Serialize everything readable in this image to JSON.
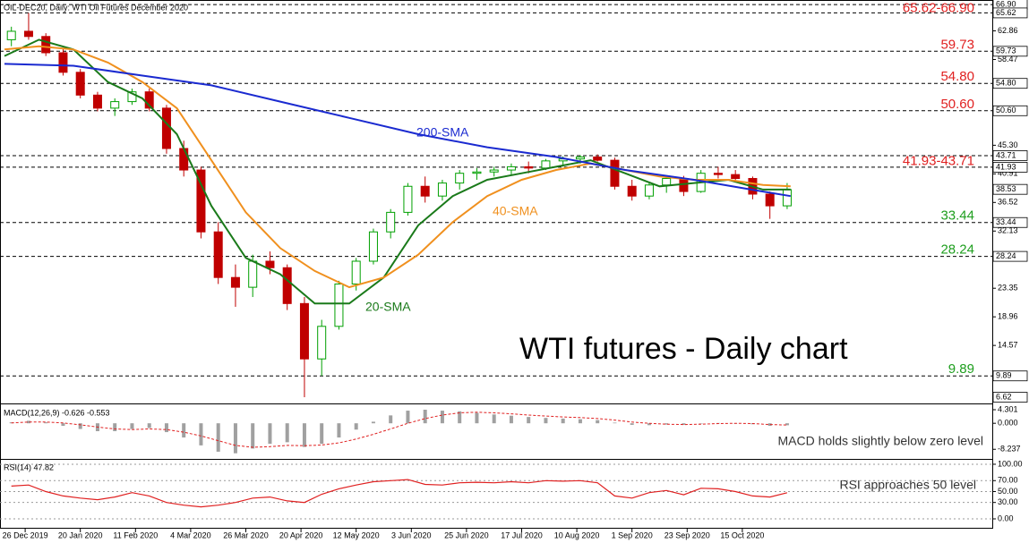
{
  "chart_data": [
    {
      "type": "candlestick",
      "title": "OIL-DEC20, Daily:  WTI Oil Futures December 2020",
      "annotation": "WTI futures - Daily chart",
      "up_color": "#00a000",
      "down_color": "#c00000",
      "xlim": [
        -1.3,
        286.5
      ],
      "xticks": [
        {
          "value": 6,
          "label": "26 Dec 2019"
        },
        {
          "value": 22,
          "label": "20 Jan 2020"
        },
        {
          "value": 38,
          "label": "11 Feb 2020"
        },
        {
          "value": 54,
          "label": "4 Mar 2020"
        },
        {
          "value": 70,
          "label": "26 Mar 2020"
        },
        {
          "value": 86,
          "label": "20 Apr 2020"
        },
        {
          "value": 102,
          "label": "12 May 2020"
        },
        {
          "value": 118,
          "label": "3 Jun 2020"
        },
        {
          "value": 134,
          "label": "25 Jun 2020"
        },
        {
          "value": 150,
          "label": "17 Jul 2020"
        },
        {
          "value": 166,
          "label": "10 Aug 2020"
        },
        {
          "value": 182,
          "label": "1 Sep 2020"
        },
        {
          "value": 198,
          "label": "23 Sep 2020"
        },
        {
          "value": 214,
          "label": "15 Oct 2020"
        }
      ],
      "ylim": [
        5.8,
        67.6
      ],
      "yticks": [
        {
          "value": 62.86,
          "label": "62.86"
        },
        {
          "value": 58.47,
          "label": "58.47"
        },
        {
          "value": 45.3,
          "label": "45.30"
        },
        {
          "value": 40.91,
          "label": "40.91"
        },
        {
          "value": 36.52,
          "label": "36.52"
        },
        {
          "value": 32.13,
          "label": "32.13"
        },
        {
          "value": 23.35,
          "label": "23.35"
        },
        {
          "value": 18.96,
          "label": "18.96"
        },
        {
          "value": 14.57,
          "label": "14.57"
        }
      ],
      "boxed_ticks": [
        {
          "value": 66.9,
          "label": "66.90"
        },
        {
          "value": 65.62,
          "label": "65.62"
        },
        {
          "value": 59.73,
          "label": "59.73"
        },
        {
          "value": 54.8,
          "label": "54.80"
        },
        {
          "value": 50.6,
          "label": "50.60"
        },
        {
          "value": 43.71,
          "label": "43.71"
        },
        {
          "value": 41.93,
          "label": "41.93"
        },
        {
          "value": 38.53,
          "label": "38.53"
        },
        {
          "value": 33.44,
          "label": "33.44"
        },
        {
          "value": 28.24,
          "label": "28.24"
        },
        {
          "value": 9.89,
          "label": "9.89"
        },
        {
          "value": 6.62,
          "label": "6.62"
        }
      ],
      "levels": [
        {
          "label": "65.62-66.90",
          "color": "#e02020",
          "values": [
            65.62,
            66.9
          ]
        },
        {
          "label": "59.73",
          "color": "#e02020",
          "values": [
            59.73
          ]
        },
        {
          "label": "54.80",
          "color": "#e02020",
          "values": [
            54.8
          ]
        },
        {
          "label": "50.60",
          "color": "#e02020",
          "values": [
            50.6
          ]
        },
        {
          "label": "41.93-43.71",
          "color": "#e02020",
          "values": [
            41.93,
            43.71
          ]
        },
        {
          "label": "33.44",
          "color": "#1e9e1e",
          "values": [
            33.44
          ]
        },
        {
          "label": "28.24",
          "color": "#1e9e1e",
          "values": [
            28.24
          ]
        },
        {
          "label": "9.89",
          "color": "#1e9e1e",
          "values": [
            9.89
          ]
        }
      ],
      "candles": {
        "x": [
          2,
          7,
          12,
          17,
          22,
          27,
          32,
          37,
          42,
          47,
          52,
          57,
          62,
          67,
          72,
          77,
          82,
          87,
          92,
          97,
          102,
          107,
          112,
          117,
          122,
          127,
          132,
          137,
          142,
          147,
          152,
          157,
          162,
          167,
          172,
          177,
          182,
          187,
          192,
          197,
          202,
          207,
          212,
          217,
          222,
          227
        ],
        "open": [
          61.5,
          62.8,
          62.0,
          59.5,
          56.5,
          53.0,
          51.0,
          52.0,
          53.5,
          51.0,
          44.8,
          41.5,
          32.0,
          25.0,
          23.5,
          27.5,
          26.5,
          21.0,
          12.5,
          17.5,
          24.0,
          27.5,
          32.0,
          35.0,
          39.0,
          37.5,
          39.5,
          41.0,
          41.2,
          41.5,
          42.0,
          41.8,
          42.9,
          43.2,
          43.5,
          43.0,
          39.0,
          37.5,
          39.2,
          40.2,
          38.2,
          41.0,
          40.8,
          40.2,
          37.8,
          36.0
        ],
        "high": [
          63.5,
          65.6,
          62.5,
          60.2,
          57.0,
          53.5,
          52.5,
          54.0,
          54.0,
          51.5,
          46.0,
          42.0,
          33.5,
          27.0,
          28.5,
          29.0,
          27.0,
          22.0,
          18.5,
          24.5,
          28.0,
          32.5,
          35.5,
          39.5,
          40.5,
          40.0,
          41.5,
          41.8,
          42.0,
          42.5,
          42.8,
          43.2,
          43.6,
          43.8,
          43.9,
          43.4,
          40.0,
          39.5,
          40.5,
          40.6,
          41.5,
          42.0,
          41.5,
          40.5,
          38.2,
          39.5
        ],
        "low": [
          60.5,
          61.5,
          59.0,
          56.0,
          52.5,
          50.5,
          49.8,
          51.5,
          50.5,
          44.0,
          40.5,
          31.0,
          24.0,
          20.5,
          22.0,
          25.5,
          20.0,
          6.62,
          9.9,
          17.0,
          23.0,
          27.0,
          31.0,
          34.5,
          36.5,
          36.8,
          38.5,
          40.0,
          40.5,
          40.8,
          41.0,
          41.5,
          42.0,
          42.5,
          42.8,
          38.5,
          36.8,
          37.0,
          38.0,
          37.5,
          38.0,
          40.2,
          39.8,
          37.0,
          34.0,
          35.5
        ],
        "close": [
          62.8,
          62.0,
          59.5,
          56.5,
          53.0,
          51.0,
          52.0,
          53.5,
          51.0,
          44.8,
          41.5,
          32.0,
          25.0,
          23.5,
          27.5,
          26.5,
          21.0,
          12.5,
          17.5,
          24.0,
          27.5,
          32.0,
          35.0,
          39.0,
          37.5,
          39.5,
          41.0,
          41.2,
          41.5,
          42.0,
          41.8,
          42.9,
          43.2,
          43.5,
          43.0,
          39.0,
          37.5,
          39.2,
          40.2,
          38.2,
          41.0,
          40.8,
          40.2,
          37.8,
          36.0,
          38.5
        ]
      },
      "lines": [
        {
          "name": "20-SMA",
          "color": "#1a7a1a",
          "x": [
            0,
            10,
            20,
            30,
            40,
            50,
            60,
            70,
            80,
            90,
            100,
            110,
            120,
            130,
            140,
            150,
            160,
            170,
            180,
            190,
            200,
            210,
            220,
            228
          ],
          "values": [
            59,
            61.5,
            60,
            55,
            52.5,
            47,
            36,
            28,
            25.5,
            21,
            21,
            25,
            33,
            37.5,
            40,
            41,
            42,
            43,
            41,
            39,
            39.5,
            40,
            38.5,
            38.5
          ]
        },
        {
          "name": "40-SMA",
          "color": "#f0901e",
          "x": [
            0,
            10,
            20,
            30,
            40,
            50,
            60,
            70,
            80,
            90,
            100,
            110,
            120,
            130,
            140,
            150,
            160,
            170,
            180,
            190,
            200,
            210,
            220,
            228
          ],
          "values": [
            60,
            60.5,
            60,
            58,
            55,
            51,
            43,
            35,
            29.5,
            26,
            23.5,
            25,
            28.5,
            33.5,
            37.5,
            40,
            41.5,
            42.5,
            41.5,
            40.5,
            40,
            40,
            39.2,
            39
          ]
        },
        {
          "name": "200-SMA",
          "color": "#1a2ad0",
          "x": [
            0,
            20,
            40,
            60,
            80,
            100,
            120,
            140,
            160,
            180,
            200,
            220,
            228
          ],
          "values": [
            57.8,
            57.5,
            56,
            54.5,
            52,
            49.5,
            47,
            45,
            43.5,
            41.5,
            40,
            38.2,
            37.5
          ]
        }
      ]
    },
    {
      "type": "macd",
      "title": "MACD(12,26,9) -0.626 -0.553",
      "annotation": "MACD holds slightly below zero level",
      "ylim": [
        -11,
        6
      ],
      "yticks": [
        {
          "value": 4.301,
          "label": "4.301"
        },
        {
          "value": 0,
          "label": "0.000"
        },
        {
          "value": -8.237,
          "label": "-8.237"
        }
      ],
      "histogram_color": "#a0a0a0",
      "signal_color": "#e02020",
      "values": [
        0.3,
        0.8,
        0.3,
        -0.8,
        -1.8,
        -2.5,
        -2.5,
        -1.8,
        -1.5,
        -2.8,
        -4.5,
        -7,
        -9,
        -9.5,
        -8,
        -6.5,
        -6,
        -7.5,
        -6.5,
        -4.5,
        -2,
        0.5,
        2.5,
        4,
        4.3,
        4,
        3.8,
        3.3,
        2.8,
        2.4,
        2,
        1.7,
        1.5,
        1.3,
        1,
        0.2,
        -0.5,
        -0.6,
        -0.4,
        -0.5,
        -0.1,
        0.1,
        0,
        -0.3,
        -0.8,
        -0.626
      ],
      "signal": [
        0.1,
        0.4,
        0.4,
        0.1,
        -0.5,
        -1.2,
        -1.8,
        -2.0,
        -1.8,
        -2.0,
        -2.8,
        -4.0,
        -5.5,
        -7.0,
        -7.6,
        -7.4,
        -7.0,
        -7.1,
        -6.9,
        -6.2,
        -5.0,
        -3.5,
        -1.8,
        0.0,
        1.5,
        2.6,
        3.3,
        3.5,
        3.3,
        3.0,
        2.6,
        2.3,
        2.0,
        1.8,
        1.5,
        1.0,
        0.4,
        0.0,
        -0.3,
        -0.4,
        -0.3,
        -0.1,
        0.0,
        -0.1,
        -0.4,
        -0.553
      ]
    },
    {
      "type": "rsi",
      "title": "RSI(14) 47.82",
      "annotation": "RSI approaches 50 level",
      "ylim": [
        -16.4,
        106.5
      ],
      "yticks": [
        {
          "value": 100,
          "label": "100.00"
        },
        {
          "value": 70,
          "label": "70.00"
        },
        {
          "value": 50,
          "label": "50.00"
        },
        {
          "value": 30,
          "label": "30.00"
        },
        {
          "value": 0,
          "label": "0.00"
        }
      ],
      "color": "#e02020",
      "values": [
        60,
        62,
        50,
        42,
        38,
        35,
        40,
        48,
        42,
        30,
        25,
        22,
        25,
        30,
        38,
        40,
        33,
        30,
        45,
        55,
        62,
        68,
        70,
        72,
        63,
        62,
        66,
        67,
        66,
        68,
        66,
        70,
        69,
        70,
        66,
        42,
        38,
        48,
        52,
        44,
        56,
        55,
        50,
        42,
        40,
        47.82
      ]
    }
  ]
}
